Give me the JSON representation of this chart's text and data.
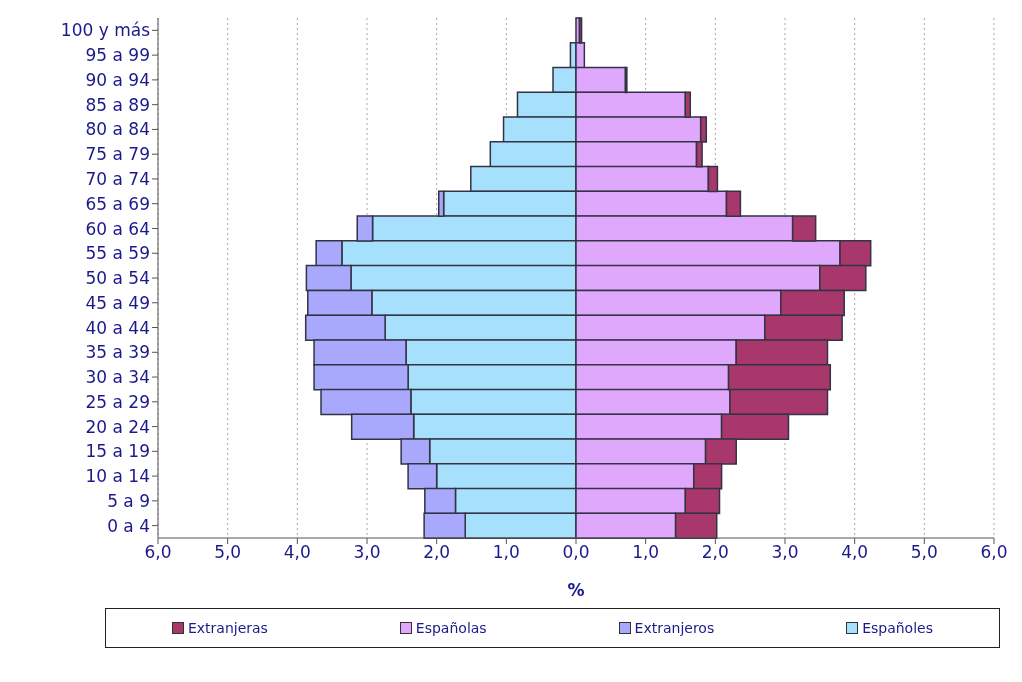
{
  "chart_data": {
    "type": "bar",
    "orientation": "horizontal",
    "stacked": true,
    "xlabel": "%",
    "categories": [
      "100 y más",
      "95 a 99",
      "90 a 94",
      "85 a 89",
      "80 a 84",
      "75 a 79",
      "70 a 74",
      "65 a 69",
      "60 a 64",
      "55 a 59",
      "50 a 54",
      "45 a 49",
      "40 a 44",
      "35 a 39",
      "30 a 34",
      "25 a 29",
      "20 a 24",
      "15 a 19",
      "10 a 14",
      "5 a 9",
      "0 a 4"
    ],
    "series": [
      {
        "name": "Españoles",
        "color": "#a6e0fc",
        "values": [
          null,
          -0.08,
          -0.33,
          -0.84,
          -1.04,
          -1.23,
          -1.51,
          -1.9,
          -2.92,
          -3.36,
          -3.23,
          -2.93,
          -2.74,
          -2.44,
          -2.41,
          -2.37,
          -2.33,
          -2.1,
          -2.0,
          -1.73,
          -1.59
        ]
      },
      {
        "name": "Extranjeros",
        "color": "#a8a8fc",
        "values": [
          0,
          0,
          0,
          0,
          0,
          0,
          0,
          -0.07,
          -0.22,
          -0.37,
          -0.64,
          -0.92,
          -1.14,
          -1.32,
          -1.35,
          -1.29,
          -0.89,
          -0.41,
          -0.41,
          -0.44,
          -0.59
        ]
      },
      {
        "name": "Españolas",
        "color": "#e0a8fc",
        "values": [
          0.05,
          0.12,
          0.71,
          1.57,
          1.79,
          1.73,
          1.9,
          2.16,
          3.11,
          3.79,
          3.5,
          2.94,
          2.71,
          2.3,
          2.19,
          2.21,
          2.09,
          1.86,
          1.69,
          1.57,
          1.43
        ]
      },
      {
        "name": "Extranjeras",
        "color": "#a8386c",
        "values": [
          0.03,
          0,
          0.02,
          0.07,
          0.08,
          0.08,
          0.13,
          0.2,
          0.33,
          0.44,
          0.66,
          0.91,
          1.11,
          1.31,
          1.46,
          1.4,
          0.96,
          0.44,
          0.4,
          0.49,
          0.59
        ]
      }
    ],
    "xlim": [
      -6,
      6
    ],
    "xticks": [
      {
        "value": -6,
        "label": "6,0"
      },
      {
        "value": -5,
        "label": "5,0"
      },
      {
        "value": -4,
        "label": "4,0"
      },
      {
        "value": -3,
        "label": "3,0"
      },
      {
        "value": -2,
        "label": "2,0"
      },
      {
        "value": -1,
        "label": "1,0"
      },
      {
        "value": 0,
        "label": "0,0"
      },
      {
        "value": 1,
        "label": "1,0"
      },
      {
        "value": 2,
        "label": "2,0"
      },
      {
        "value": 3,
        "label": "3,0"
      },
      {
        "value": 4,
        "label": "4,0"
      },
      {
        "value": 5,
        "label": "5,0"
      },
      {
        "value": 6,
        "label": "6,0"
      }
    ],
    "grid": "x",
    "legend": "bottom"
  }
}
